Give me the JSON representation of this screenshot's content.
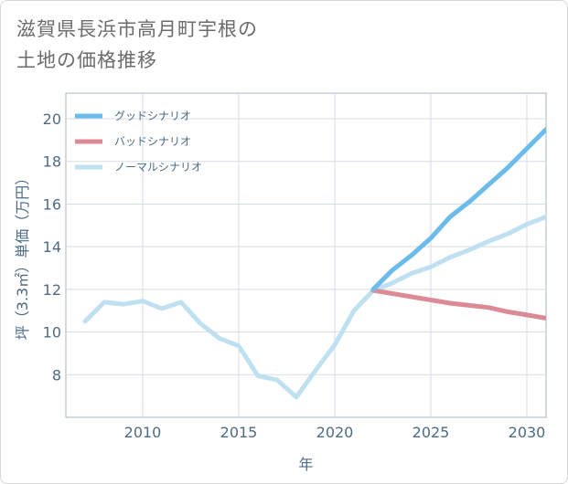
{
  "title_lines": [
    "滋賀県長浜市高月町宇根の",
    "土地の価格推移"
  ],
  "chart_data": {
    "type": "line",
    "title": "滋賀県長浜市高月町宇根の土地の価格推移",
    "xlabel": "年",
    "ylabel": "坪（3.3㎡）単価（万円）",
    "xlim": [
      2006,
      2031
    ],
    "ylim": [
      6,
      21.2
    ],
    "xticks": [
      2010,
      2015,
      2020,
      2025,
      2030
    ],
    "yticks": [
      8,
      10,
      12,
      14,
      16,
      18,
      20
    ],
    "grid": true,
    "legend_position": "top-left",
    "series": [
      {
        "name": "グッドシナリオ",
        "color": "#6bbbeb",
        "x": [
          2022,
          2023,
          2024,
          2025,
          2026,
          2027,
          2028,
          2029,
          2030,
          2031
        ],
        "values": [
          12.0,
          12.9,
          13.6,
          14.4,
          15.4,
          16.1,
          16.9,
          17.7,
          18.6,
          19.5
        ]
      },
      {
        "name": "バッドシナリオ",
        "color": "#dc8a95",
        "x": [
          2022,
          2023,
          2024,
          2025,
          2026,
          2027,
          2028,
          2029,
          2030,
          2031
        ],
        "values": [
          11.95,
          11.8,
          11.65,
          11.5,
          11.35,
          11.25,
          11.15,
          10.95,
          10.8,
          10.65
        ]
      },
      {
        "name": "ノーマルシナリオ",
        "color": "#bfe0f0",
        "x": [
          2007,
          2008,
          2009,
          2010,
          2011,
          2012,
          2013,
          2014,
          2015,
          2016,
          2017,
          2018,
          2019,
          2020,
          2021,
          2022,
          2023,
          2024,
          2025,
          2026,
          2027,
          2028,
          2029,
          2030,
          2031
        ],
        "values": [
          10.5,
          11.4,
          11.3,
          11.45,
          11.1,
          11.4,
          10.4,
          9.7,
          9.35,
          7.95,
          7.75,
          6.95,
          8.2,
          9.4,
          11.0,
          11.95,
          12.3,
          12.75,
          13.05,
          13.5,
          13.85,
          14.25,
          14.6,
          15.05,
          15.4
        ]
      }
    ]
  }
}
